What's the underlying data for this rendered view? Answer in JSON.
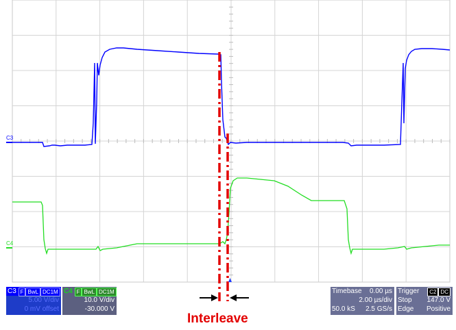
{
  "channels": {
    "ch3": {
      "label": "C3",
      "tag1": "F",
      "tag2": "BwL",
      "tag3": "DC1M",
      "volts_div": "5.00 V/div",
      "offset": "0 mV offset",
      "color": "#0000ff"
    },
    "ch4": {
      "label": "C4",
      "tag1": "F",
      "tag2": "BwL",
      "tag3": "DC1M",
      "volts_div": "10.0 V/div",
      "offset": "-30.000 V",
      "color": "#00ff00"
    }
  },
  "timebase": {
    "title": "Timebase",
    "delay": "0.00 µs",
    "time_div": "2.00 µs/div",
    "samples": "50.0 kS",
    "rate": "2.5 GS/s"
  },
  "trigger": {
    "title": "Trigger",
    "source_tag": "C2",
    "coupling_tag": "DC",
    "mode": "Stop",
    "level": "147.0 V",
    "type": "Edge",
    "slope": "Positive"
  },
  "annotation": {
    "text": "Interleave",
    "color": "#e30000"
  },
  "grid": {
    "divisions_x": 10,
    "divisions_y": 8
  }
}
